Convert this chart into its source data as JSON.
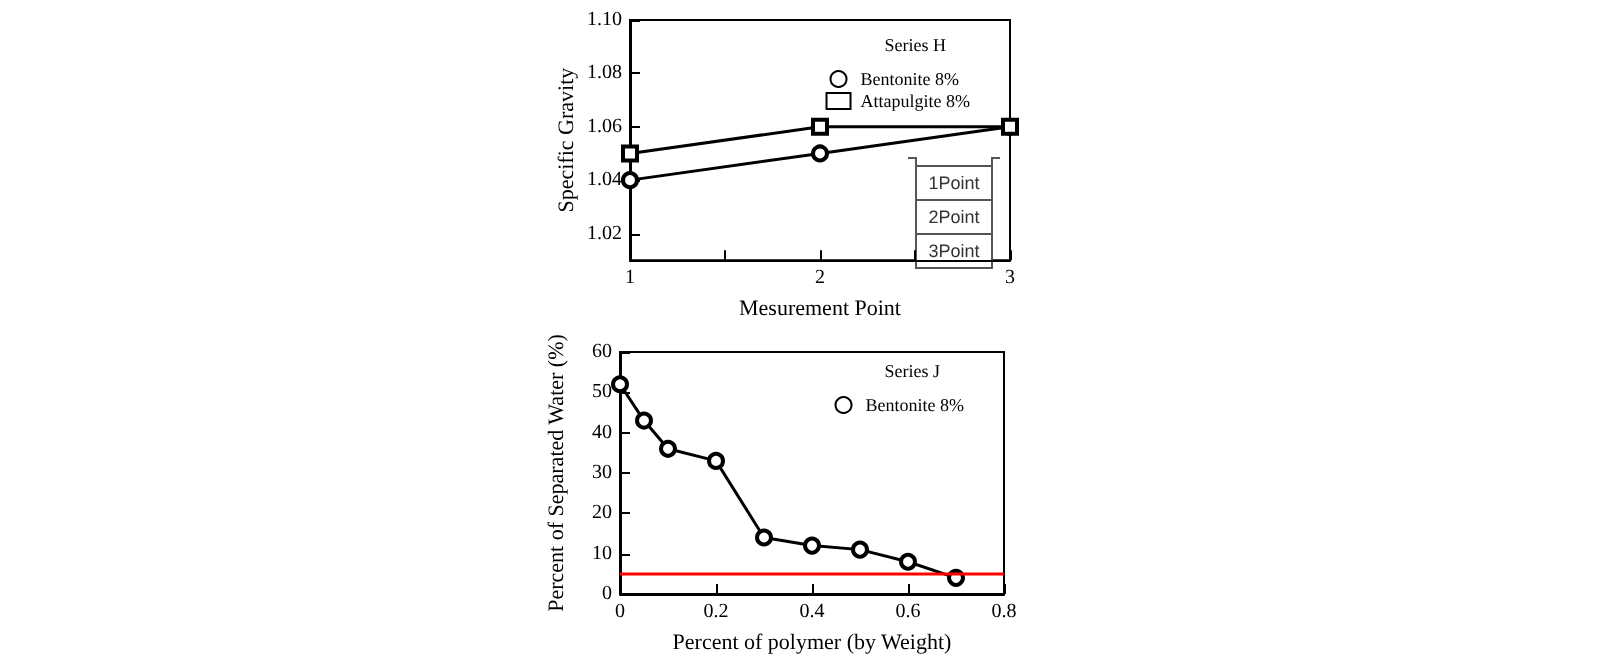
{
  "chart_data": [
    {
      "type": "line",
      "xlabel": "Mesurement Point",
      "ylabel": "Specific Gravity",
      "legend_title": "Series H",
      "legend": "top right",
      "line_style": "solid",
      "grid": false,
      "xlim": [
        1,
        3
      ],
      "xticks": [
        1,
        {
          "value": 1.5,
          "label": null
        },
        2,
        {
          "value": 2.5,
          "label": null
        },
        3
      ],
      "ylim": [
        1.01,
        1.1
      ],
      "yticks": [
        1.02,
        1.04,
        1.06,
        1.08,
        {
          "value": 1.1,
          "label": "1.10"
        }
      ],
      "annotations": [
        "1Point",
        "2Point",
        "3Point"
      ],
      "series": [
        {
          "name": "Bentonite 8%",
          "color": "#000000",
          "marker": "circle",
          "x": [
            1,
            2,
            3
          ],
          "values": [
            1.04,
            1.05,
            1.06
          ]
        },
        {
          "name": "Attapulgite 8%",
          "color": "#000000",
          "marker": "square",
          "x": [
            1,
            2,
            3
          ],
          "values": [
            1.05,
            1.06,
            1.06
          ]
        }
      ]
    },
    {
      "type": "line",
      "xlabel": "Percent of polymer (by Weight)",
      "ylabel": "Percent of Separated Water (%)",
      "legend_title": "Series J",
      "legend": "top right",
      "line_style": "solid",
      "grid": false,
      "xlim": [
        0,
        0.8
      ],
      "xticks": [
        0,
        0.2,
        0.4,
        0.6,
        0.8
      ],
      "ylim": [
        0,
        60
      ],
      "yticks": [
        0,
        10,
        20,
        30,
        40,
        50,
        60
      ],
      "ref_lines": [
        {
          "axis": "y",
          "value": 5,
          "color": "#ff0000"
        }
      ],
      "series": [
        {
          "name": "Bentonite 8%",
          "color": "#000000",
          "marker": "circle",
          "x": [
            0,
            0.05,
            0.1,
            0.2,
            0.3,
            0.4,
            0.5,
            0.6,
            0.7
          ],
          "values": [
            52,
            43,
            36,
            33,
            14,
            12,
            11,
            8,
            4
          ]
        }
      ]
    }
  ]
}
